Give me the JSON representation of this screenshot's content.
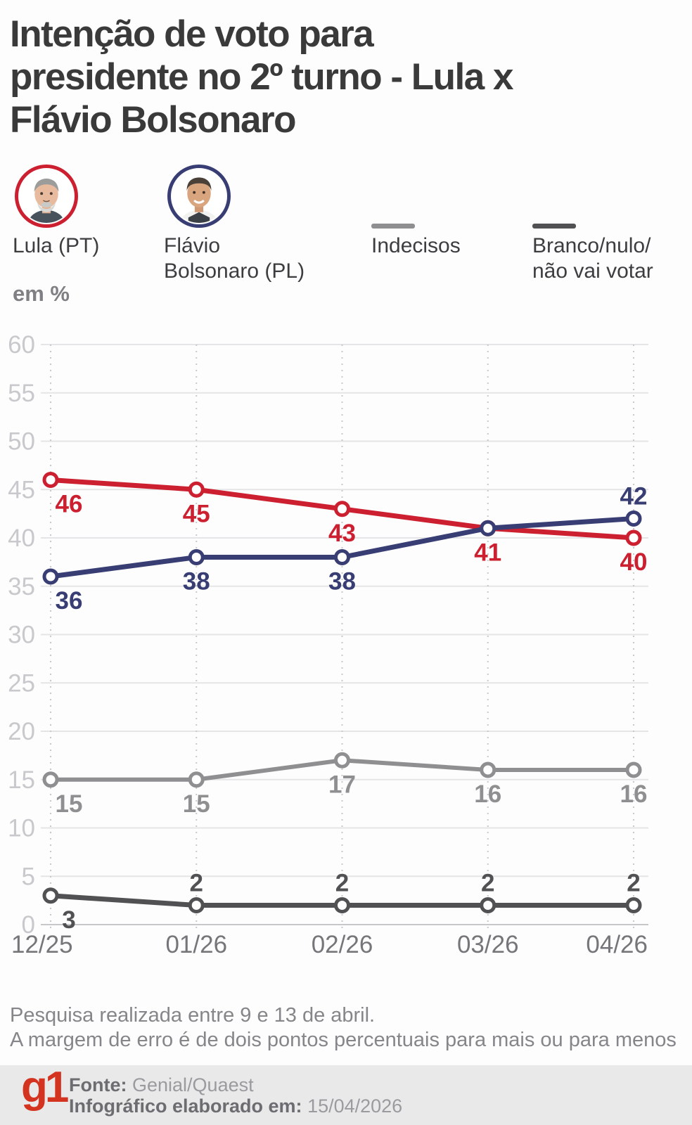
{
  "title": "Intenção de voto para\npresidente no 2º turno - Lula x\nFlávio Bolsonaro",
  "unit_label": "em %",
  "legend": {
    "lula": {
      "name": "Lula (PT)",
      "color": "#cc2030"
    },
    "flavio": {
      "name": "Flávio\nBolsonaro (PL)",
      "color": "#383e74"
    },
    "indecisos": {
      "name": "Indecisos",
      "color": "#8f8f91"
    },
    "branco": {
      "name": "Branco/nulo/\nnão vai votar",
      "color": "#515154"
    }
  },
  "chart_data": {
    "type": "line",
    "title": "Intenção de voto para presidente no 2º turno - Lula x Flávio Bolsonaro",
    "ylabel": "em %",
    "x": [
      "12/25",
      "01/26",
      "02/26",
      "03/26",
      "04/26"
    ],
    "ylim": [
      0,
      60
    ],
    "ytick_step": 5,
    "grid": true,
    "legend_position": "top",
    "series": [
      {
        "name": "Lula (PT)",
        "color": "#cc2030",
        "values": [
          46,
          45,
          43,
          41,
          40
        ],
        "labels": [
          46,
          45,
          43,
          41,
          40
        ],
        "label_side": [
          "below",
          "below",
          "below",
          "below",
          "below"
        ]
      },
      {
        "name": "Flávio Bolsonaro (PL)",
        "color": "#383e74",
        "values": [
          36,
          38,
          38,
          41,
          42
        ],
        "labels": [
          36,
          38,
          38,
          null,
          42
        ],
        "label_side": [
          "below",
          "below",
          "below",
          "below",
          "above"
        ]
      },
      {
        "name": "Indecisos",
        "color": "#8f8f91",
        "values": [
          15,
          15,
          17,
          16,
          16
        ],
        "labels": [
          15,
          15,
          17,
          16,
          16
        ],
        "label_side": [
          "below",
          "below",
          "below",
          "below",
          "below"
        ]
      },
      {
        "name": "Branco/nulo/não vai votar",
        "color": "#515154",
        "values": [
          3,
          2,
          2,
          2,
          2
        ],
        "labels": [
          3,
          2,
          2,
          2,
          2
        ],
        "label_side": [
          "below",
          "above",
          "above",
          "above",
          "above"
        ]
      }
    ]
  },
  "notes": {
    "line1": "Pesquisa realizada entre 9 e 13 de abril.",
    "line2": "A margem de erro é de dois pontos percentuais para mais ou para menos"
  },
  "footer": {
    "logo": "g1",
    "source_label": "Fonte:",
    "source": "Genial/Quaest",
    "made_label": "Infográfico elaborado em:",
    "made_date": "15/04/2026"
  }
}
